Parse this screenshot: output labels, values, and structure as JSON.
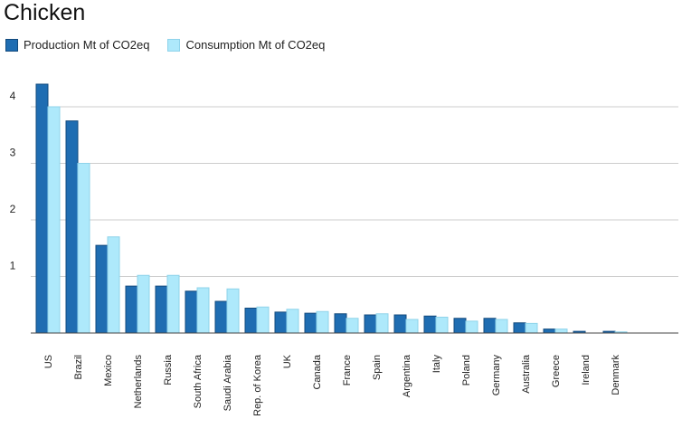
{
  "chart_data": {
    "type": "bar",
    "title": "Chicken",
    "xlabel": "",
    "ylabel": "",
    "ylim": [
      0,
      4.4
    ],
    "yticks": [
      1,
      2,
      3,
      4
    ],
    "grid": true,
    "legend_position": "top-left",
    "categories": [
      "US",
      "Brazil",
      "Mexico",
      "Netherlands",
      "Russia",
      "South Africa",
      "Saudi Arabia",
      "Rep. of Korea",
      "UK",
      "Canada",
      "France",
      "Spain",
      "Argentina",
      "Italy",
      "Poland",
      "Germany",
      "Australia",
      "Greece",
      "Ireland",
      "Denmark"
    ],
    "series": [
      {
        "name": "Production Mt of CO2eq",
        "color": "#1f6db2",
        "values": [
          4.4,
          3.75,
          1.55,
          0.83,
          0.83,
          0.74,
          0.56,
          0.44,
          0.37,
          0.35,
          0.34,
          0.32,
          0.32,
          0.3,
          0.26,
          0.26,
          0.18,
          0.07,
          0.03,
          0.03
        ]
      },
      {
        "name": "Consumption Mt of CO2eq",
        "color": "#aee9fb",
        "values": [
          4.0,
          3.0,
          1.7,
          1.02,
          1.02,
          0.8,
          0.78,
          0.46,
          0.42,
          0.38,
          0.26,
          0.34,
          0.24,
          0.28,
          0.21,
          0.24,
          0.17,
          0.07,
          0.0,
          0.02
        ]
      }
    ]
  }
}
